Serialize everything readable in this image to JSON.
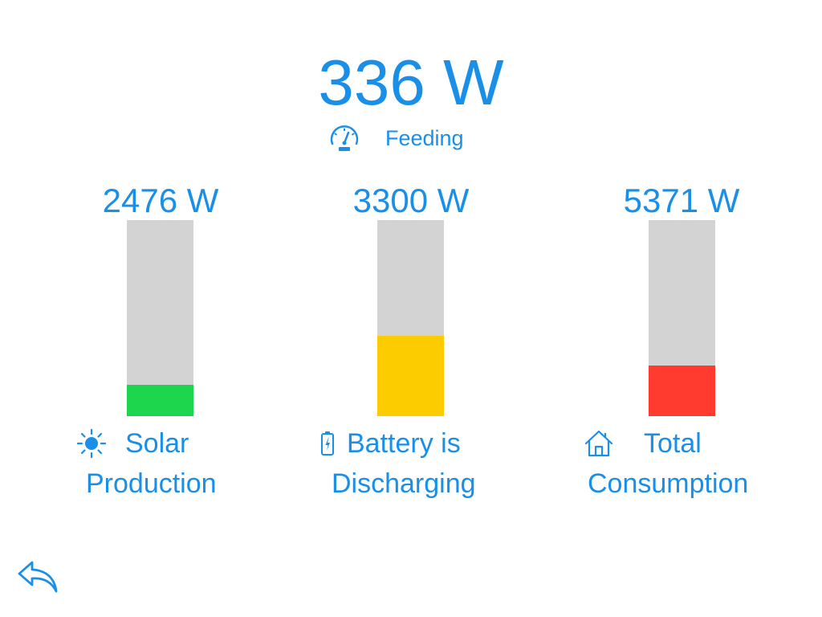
{
  "header": {
    "power_value": "336 W",
    "status_label": "Feeding"
  },
  "columns": [
    {
      "id": "solar",
      "value": "2476 W",
      "label_line1": "Solar",
      "label_line2": "Production",
      "icon": "sun-icon",
      "fill_fraction": 0.16,
      "fill_color": "#1ed64d"
    },
    {
      "id": "battery",
      "value": "3300 W",
      "label_line1": "Battery is",
      "label_line2": "Discharging",
      "icon": "battery-icon",
      "fill_fraction": 0.41,
      "fill_color": "#fccc00"
    },
    {
      "id": "consumption",
      "value": "5371 W",
      "label_line1": "Total",
      "label_line2": "Consumption",
      "icon": "house-icon",
      "fill_fraction": 0.26,
      "fill_color": "#ff3b30"
    }
  ],
  "colors": {
    "accent": "#1a8fe8",
    "bar_background": "#d3d3d3"
  },
  "navigation": {
    "back_icon": "back-arrow-icon"
  }
}
